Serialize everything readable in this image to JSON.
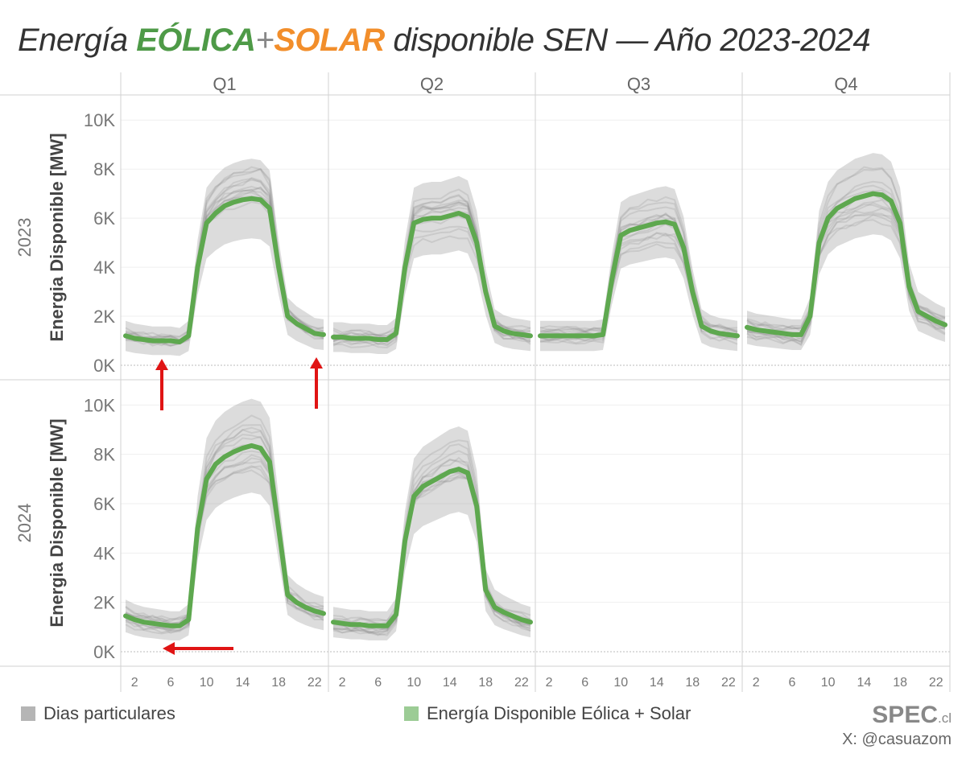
{
  "title": {
    "prefix": "Energía ",
    "eolica": "EÓLICA",
    "plus": "+",
    "solar": "SOLAR",
    "suffix": " disponible SEN — Año 2023-2024"
  },
  "chart_data": {
    "type": "line",
    "title": "Energía EÓLICA + SOLAR disponible SEN — Año 2023-2024",
    "ylabel": "Energia Disponible [MW]",
    "columns": [
      "Q1",
      "Q2",
      "Q3",
      "Q4"
    ],
    "rows": [
      "2023",
      "2024"
    ],
    "ylim": [
      0,
      10500
    ],
    "y_ticks": [
      0,
      2000,
      4000,
      6000,
      8000,
      10000
    ],
    "y_tick_labels": [
      "0K",
      "2K",
      "4K",
      "6K",
      "8K",
      "10K"
    ],
    "x_range": [
      1,
      23
    ],
    "x_ticks": [
      2,
      6,
      10,
      14,
      18,
      22
    ],
    "x": [
      1,
      2,
      3,
      4,
      5,
      6,
      7,
      8,
      9,
      10,
      11,
      12,
      13,
      14,
      15,
      16,
      17,
      18,
      19,
      20,
      21,
      22,
      23
    ],
    "panels": [
      {
        "year": "2023",
        "quarter": "Q1",
        "values": [
          1200,
          1100,
          1050,
          1000,
          1000,
          1000,
          950,
          1200,
          4000,
          5800,
          6200,
          6500,
          6650,
          6750,
          6800,
          6750,
          6400,
          4000,
          2000,
          1700,
          1500,
          1300,
          1250
        ]
      },
      {
        "year": "2023",
        "quarter": "Q2",
        "values": [
          1150,
          1150,
          1100,
          1100,
          1100,
          1050,
          1050,
          1300,
          4000,
          5800,
          5950,
          6000,
          6000,
          6100,
          6200,
          6050,
          5000,
          3000,
          1600,
          1400,
          1300,
          1250,
          1200
        ]
      },
      {
        "year": "2023",
        "quarter": "Q3",
        "values": [
          1200,
          1200,
          1200,
          1200,
          1200,
          1200,
          1200,
          1250,
          3500,
          5300,
          5500,
          5600,
          5700,
          5800,
          5850,
          5750,
          4800,
          3000,
          1600,
          1400,
          1300,
          1250,
          1200
        ]
      },
      {
        "year": "2023",
        "quarter": "Q4",
        "values": [
          1550,
          1450,
          1400,
          1350,
          1300,
          1250,
          1250,
          2000,
          5000,
          6000,
          6400,
          6600,
          6800,
          6900,
          7000,
          6950,
          6700,
          5800,
          3200,
          2200,
          2000,
          1800,
          1650
        ]
      },
      {
        "year": "2024",
        "quarter": "Q1",
        "values": [
          1450,
          1300,
          1200,
          1150,
          1100,
          1050,
          1050,
          1300,
          5000,
          7000,
          7600,
          7900,
          8100,
          8250,
          8350,
          8250,
          7700,
          5000,
          2300,
          2000,
          1800,
          1650,
          1550
        ]
      },
      {
        "year": "2024",
        "quarter": "Q2",
        "values": [
          1200,
          1150,
          1100,
          1100,
          1050,
          1050,
          1050,
          1500,
          4500,
          6300,
          6700,
          6900,
          7100,
          7300,
          7400,
          7250,
          5900,
          2500,
          1800,
          1600,
          1450,
          1300,
          1200
        ]
      }
    ],
    "legend": [
      "Dias particulares",
      "Energía Disponible Eólica + Solar"
    ],
    "colors": {
      "main": "#5ea84f",
      "days": "#8c8c8c",
      "arrow": "#e01414"
    }
  },
  "footer": {
    "legend_days": "Dias particulares",
    "legend_main": "Energía Disponible Eólica + Solar",
    "brand": "SPEC",
    "brand_suffix": ".cl",
    "handle": "X: @casuazom"
  }
}
